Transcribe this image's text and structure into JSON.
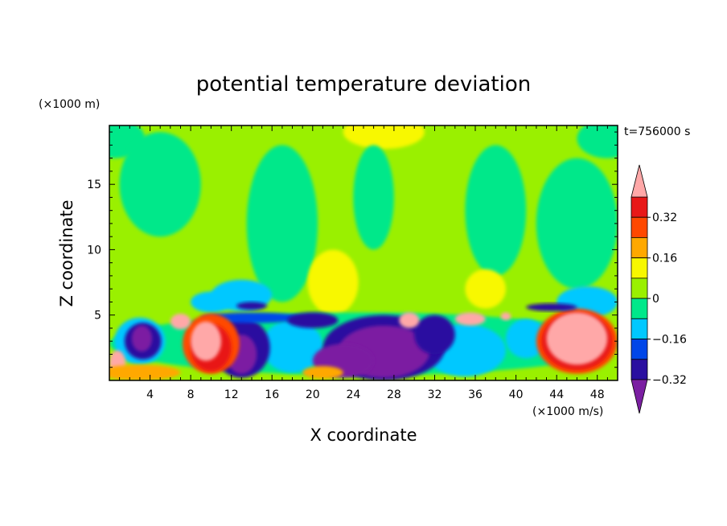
{
  "chart_data": {
    "type": "heatmap",
    "title": "potential temperature deviation",
    "xlabel": "X coordinate",
    "ylabel": "Z coordinate",
    "x_unit": "(×1000 m/s)",
    "y_unit": "(×1000 m)",
    "time_label": "t=756000 s",
    "xlim": [
      0,
      50
    ],
    "ylim": [
      0,
      19.5
    ],
    "x_ticks": [
      "4",
      "8",
      "12",
      "16",
      "20",
      "24",
      "28",
      "32",
      "36",
      "40",
      "44",
      "48"
    ],
    "y_ticks": [
      "5",
      "10",
      "15"
    ],
    "colorbar": {
      "levels": [
        -0.4,
        -0.32,
        -0.24,
        -0.16,
        -0.08,
        0,
        0.08,
        0.16,
        0.24,
        0.32,
        0.4
      ],
      "tick_labels": [
        "0.32",
        "0.16",
        "0",
        "−0.16",
        "−0.32"
      ],
      "colors": [
        "#7b1fa2",
        "#2a0fa0",
        "#0046e8",
        "#00c8ff",
        "#00e88a",
        "#9af000",
        "#f8f800",
        "#ffa800",
        "#ff4800",
        "#e81818",
        "#ffa8a8"
      ],
      "extend": "both"
    },
    "field_description_levels": {
      "upper_layer_background": 0.03,
      "lower_layer_range": [
        -0.4,
        0.4
      ]
    }
  }
}
